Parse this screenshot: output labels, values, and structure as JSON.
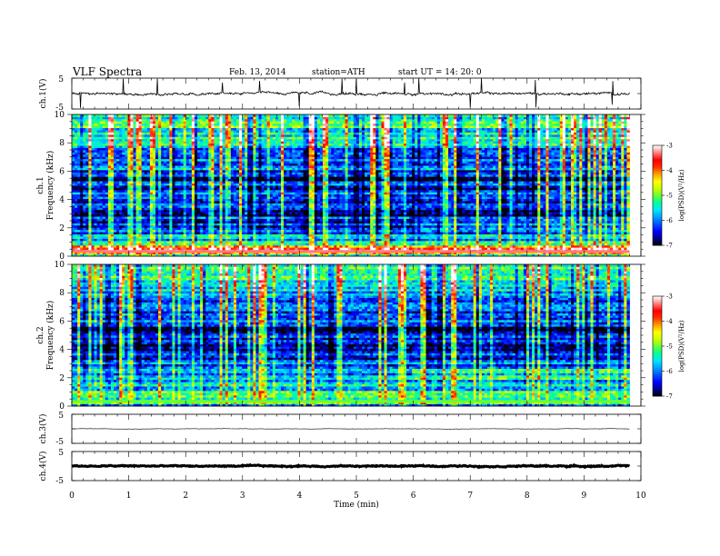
{
  "header": {
    "title": "VLF  Spectra",
    "date": "Feb. 13, 2014",
    "station": "station=ATH",
    "start": "start  UT  =   14: 20: 0"
  },
  "colors": {
    "trace": "#000000",
    "colormap": [
      "#000000",
      "#00008b",
      "#0000ff",
      "#0050ff",
      "#00a0ff",
      "#00e5ff",
      "#00ff99",
      "#66ff33",
      "#ccff00",
      "#ffff00",
      "#ffa000",
      "#ff3000",
      "#ff0000",
      "#ff8080",
      "#ffffff"
    ]
  },
  "chart_data": [
    {
      "type": "line",
      "name": "ch1-waveform",
      "ylabel": "ch.1(V)",
      "ylim": [
        -5,
        5
      ],
      "yticks": [
        "5",
        "-5"
      ],
      "xlim": [
        0,
        10
      ],
      "data_xmax": 9.8,
      "baseline": 0,
      "noise_amplitude": 0.5,
      "spike_times": [
        0.15,
        0.9,
        1.5,
        2.65,
        3.3,
        4.0,
        4.75,
        5.0,
        5.85,
        6.1,
        7.0,
        7.2,
        8.15,
        9.5
      ]
    },
    {
      "type": "heatmap",
      "name": "ch1-spectrogram",
      "ylabel": "ch.1\nFrequency (kHz)",
      "ylabel_top": "ch.1",
      "ylabel_bottom": "Frequency  (kHz)",
      "ylim": [
        0,
        10
      ],
      "yticks": [
        "0",
        "2",
        "4",
        "6",
        "8",
        "10"
      ],
      "xlim": [
        0,
        10
      ],
      "data_xmax": 9.8,
      "colorbar": {
        "label": "log(PSD)(V²/Hz)",
        "range": [
          -7,
          -3
        ],
        "ticks": [
          "-3",
          "-4",
          "-5",
          "-6",
          "-7"
        ]
      },
      "background_level_by_freq": [
        [
          0,
          -6.2
        ],
        [
          0.3,
          -3.3
        ],
        [
          0.6,
          -3.8
        ],
        [
          1.0,
          -5.4
        ],
        [
          1.5,
          -5.9
        ],
        [
          2.0,
          -6.2
        ],
        [
          3.0,
          -6.5
        ],
        [
          4.0,
          -6.4
        ],
        [
          5.0,
          -6.3
        ],
        [
          5.5,
          -6.7
        ],
        [
          6.0,
          -6.0
        ],
        [
          7.0,
          -6.1
        ],
        [
          8.0,
          -5.6
        ],
        [
          9.0,
          -5.3
        ],
        [
          10.0,
          -5.1
        ]
      ],
      "sferic_density": 0.55,
      "step_change_time": 6.0
    },
    {
      "type": "heatmap",
      "name": "ch2-spectrogram",
      "ylabel_top": "ch.2",
      "ylabel_bottom": "Frequency  (kHz)",
      "ylim": [
        0,
        10
      ],
      "yticks": [
        "0",
        "2",
        "4",
        "6",
        "8",
        "10"
      ],
      "xlim": [
        0,
        10
      ],
      "data_xmax": 9.8,
      "colorbar": {
        "label": "log(PSD)(V²/Hz)",
        "range": [
          -7,
          -3
        ],
        "ticks": [
          "-3",
          "-4",
          "-5",
          "-6",
          "-7"
        ]
      },
      "background_level_by_freq": [
        [
          0,
          -6.5
        ],
        [
          0.3,
          -5.0
        ],
        [
          0.6,
          -5.1
        ],
        [
          1.0,
          -5.4
        ],
        [
          1.5,
          -5.6
        ],
        [
          2.0,
          -5.8
        ],
        [
          3.0,
          -6.1
        ],
        [
          4.0,
          -6.4
        ],
        [
          5.0,
          -6.5
        ],
        [
          5.5,
          -6.8
        ],
        [
          6.0,
          -6.2
        ],
        [
          7.0,
          -6.2
        ],
        [
          8.0,
          -5.6
        ],
        [
          9.0,
          -5.3
        ],
        [
          10.0,
          -5.1
        ]
      ],
      "sferic_density": 0.55,
      "step_change_time": 6.0
    },
    {
      "type": "line",
      "name": "ch3-waveform",
      "ylabel": "ch.3(V)",
      "ylim": [
        -5,
        5
      ],
      "yticks": [
        "5",
        "-5"
      ],
      "xlim": [
        0,
        10
      ],
      "data_xmax": 9.8,
      "baseline": 0,
      "noise_amplitude": 0.08
    },
    {
      "type": "line",
      "name": "ch4-waveform",
      "ylabel": "ch.4(V)",
      "ylim": [
        -5,
        5
      ],
      "yticks": [
        "5",
        "-5"
      ],
      "xlim": [
        0,
        10
      ],
      "data_xmax": 9.8,
      "baseline": 0,
      "noise_amplitude": 0.25
    }
  ],
  "xaxis": {
    "label": "Time  (min)",
    "ticks": [
      "0",
      "1",
      "2",
      "3",
      "4",
      "5",
      "6",
      "7",
      "8",
      "9",
      "10"
    ]
  }
}
